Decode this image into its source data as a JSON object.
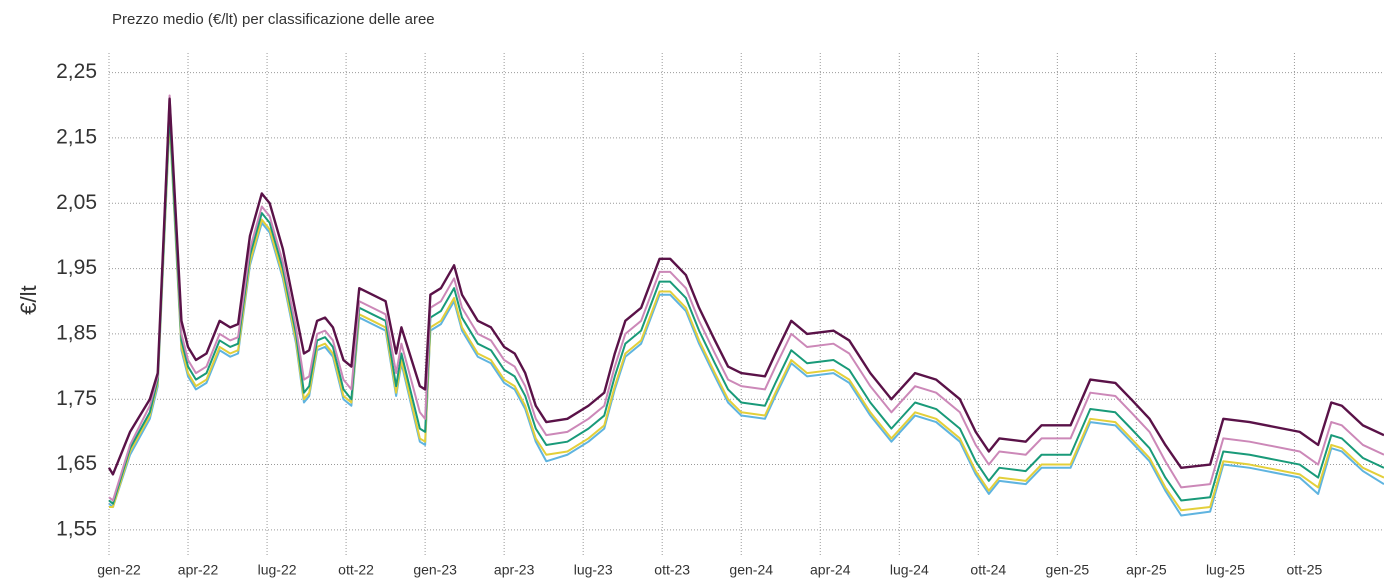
{
  "chart_data": {
    "type": "line",
    "title": "Prezzo medio (€/lt) per classificazione delle aree",
    "y_label": "€/lt",
    "x": [
      0,
      0.15,
      0.8,
      1.55,
      1.85,
      2.3,
      2.75,
      3.0,
      3.3,
      3.7,
      4.2,
      4.6,
      4.9,
      5.35,
      5.8,
      6.1,
      6.6,
      7.1,
      7.4,
      7.6,
      7.9,
      8.2,
      8.5,
      8.9,
      9.2,
      9.5,
      10,
      10.5,
      10.9,
      11.1,
      11.8,
      12.0,
      12.2,
      12.6,
      13.1,
      13.4,
      14,
      14.5,
      15,
      15.4,
      15.8,
      16.2,
      16.6,
      17.4,
      18.2,
      18.8,
      19.2,
      19.6,
      20.2,
      20.9,
      21.3,
      21.9,
      22.4,
      23,
      23.5,
      24,
      24.9,
      25.3,
      25.9,
      26.5,
      27.5,
      28.1,
      28.9,
      29.7,
      30.6,
      31.4,
      32.3,
      32.9,
      33.4,
      33.8,
      34.8,
      35.4,
      36.5,
      37.25,
      38.2,
      38.8,
      39.5,
      40.1,
      40.7,
      41.8,
      42.3,
      43.3,
      45.2,
      45.9,
      46.4,
      46.8,
      47.6,
      48.4
    ],
    "xlim": [
      0,
      48.4
    ],
    "xticks": [
      {
        "value": 0,
        "label": "gen-22"
      },
      {
        "value": 3,
        "label": "apr-22"
      },
      {
        "value": 6,
        "label": "lug-22"
      },
      {
        "value": 9,
        "label": "ott-22"
      },
      {
        "value": 12,
        "label": "gen-23"
      },
      {
        "value": 15,
        "label": "apr-23"
      },
      {
        "value": 18,
        "label": "lug-23"
      },
      {
        "value": 21,
        "label": "ott-23"
      },
      {
        "value": 24,
        "label": "gen-24"
      },
      {
        "value": 27,
        "label": "apr-24"
      },
      {
        "value": 30,
        "label": "lug-24"
      },
      {
        "value": 33,
        "label": "ott-24"
      },
      {
        "value": 36,
        "label": "gen-25"
      },
      {
        "value": 39,
        "label": "apr-25"
      },
      {
        "value": 42,
        "label": "lug-25"
      },
      {
        "value": 45,
        "label": "ott-25"
      }
    ],
    "ylim": [
      1.51,
      2.28
    ],
    "yticks": [
      {
        "value": 1.55,
        "label": "1,55"
      },
      {
        "value": 1.65,
        "label": "1,65"
      },
      {
        "value": 1.75,
        "label": "1,75"
      },
      {
        "value": 1.85,
        "label": "1,85"
      },
      {
        "value": 1.95,
        "label": "1,95"
      },
      {
        "value": 2.05,
        "label": "2,05"
      },
      {
        "value": 2.15,
        "label": "2,15"
      },
      {
        "value": 2.25,
        "label": "2,25"
      }
    ],
    "grid": true,
    "series": [
      {
        "color": "#5fb4e0",
        "values": [
          1.59,
          1.585,
          1.665,
          1.72,
          1.77,
          2.175,
          1.825,
          1.785,
          1.765,
          1.775,
          1.825,
          1.815,
          1.82,
          1.955,
          2.02,
          2.005,
          1.935,
          1.835,
          1.745,
          1.755,
          1.825,
          1.83,
          1.815,
          1.75,
          1.74,
          1.875,
          1.865,
          1.855,
          1.755,
          1.805,
          1.685,
          1.68,
          1.855,
          1.865,
          1.9,
          1.855,
          1.815,
          1.805,
          1.775,
          1.765,
          1.735,
          1.685,
          1.655,
          1.665,
          1.685,
          1.705,
          1.765,
          1.815,
          1.835,
          1.91,
          1.91,
          1.885,
          1.835,
          1.785,
          1.745,
          1.725,
          1.72,
          1.755,
          1.805,
          1.785,
          1.79,
          1.775,
          1.725,
          1.685,
          1.725,
          1.715,
          1.685,
          1.635,
          1.605,
          1.625,
          1.62,
          1.645,
          1.645,
          1.715,
          1.71,
          1.685,
          1.655,
          1.61,
          1.572,
          1.578,
          1.65,
          1.645,
          1.63,
          1.605,
          1.675,
          1.67,
          1.64,
          1.62
        ]
      },
      {
        "color": "#e3cf3a",
        "values": [
          1.585,
          1.585,
          1.67,
          1.725,
          1.775,
          2.18,
          1.83,
          1.79,
          1.77,
          1.78,
          1.83,
          1.82,
          1.825,
          1.96,
          2.025,
          2.01,
          1.94,
          1.84,
          1.75,
          1.76,
          1.83,
          1.835,
          1.82,
          1.755,
          1.745,
          1.88,
          1.87,
          1.86,
          1.76,
          1.81,
          1.69,
          1.685,
          1.86,
          1.87,
          1.905,
          1.86,
          1.82,
          1.81,
          1.78,
          1.77,
          1.74,
          1.69,
          1.665,
          1.67,
          1.69,
          1.71,
          1.77,
          1.82,
          1.84,
          1.915,
          1.915,
          1.89,
          1.84,
          1.79,
          1.75,
          1.73,
          1.725,
          1.76,
          1.81,
          1.79,
          1.795,
          1.78,
          1.73,
          1.69,
          1.73,
          1.72,
          1.69,
          1.64,
          1.61,
          1.63,
          1.625,
          1.65,
          1.65,
          1.72,
          1.715,
          1.69,
          1.66,
          1.615,
          1.58,
          1.585,
          1.655,
          1.65,
          1.635,
          1.615,
          1.68,
          1.675,
          1.645,
          1.63
        ]
      },
      {
        "color": "#199a79",
        "values": [
          1.595,
          1.59,
          1.675,
          1.73,
          1.78,
          2.19,
          1.84,
          1.8,
          1.78,
          1.79,
          1.84,
          1.83,
          1.835,
          1.97,
          2.035,
          2.02,
          1.95,
          1.85,
          1.76,
          1.77,
          1.84,
          1.845,
          1.83,
          1.765,
          1.75,
          1.89,
          1.88,
          1.87,
          1.77,
          1.82,
          1.705,
          1.7,
          1.875,
          1.885,
          1.92,
          1.875,
          1.835,
          1.825,
          1.795,
          1.785,
          1.755,
          1.705,
          1.68,
          1.685,
          1.705,
          1.725,
          1.785,
          1.835,
          1.855,
          1.93,
          1.93,
          1.905,
          1.855,
          1.805,
          1.765,
          1.745,
          1.74,
          1.775,
          1.825,
          1.805,
          1.81,
          1.795,
          1.745,
          1.705,
          1.745,
          1.735,
          1.705,
          1.655,
          1.625,
          1.645,
          1.64,
          1.665,
          1.665,
          1.735,
          1.73,
          1.705,
          1.675,
          1.63,
          1.595,
          1.6,
          1.67,
          1.665,
          1.65,
          1.63,
          1.695,
          1.69,
          1.66,
          1.645
        ]
      },
      {
        "color": "#cc88b8",
        "values": [
          1.6,
          1.595,
          1.68,
          1.74,
          1.785,
          2.215,
          1.85,
          1.81,
          1.79,
          1.8,
          1.85,
          1.84,
          1.845,
          1.98,
          2.045,
          2.03,
          1.96,
          1.86,
          1.78,
          1.785,
          1.85,
          1.855,
          1.84,
          1.78,
          1.765,
          1.9,
          1.89,
          1.88,
          1.79,
          1.835,
          1.73,
          1.72,
          1.89,
          1.9,
          1.935,
          1.89,
          1.85,
          1.84,
          1.81,
          1.8,
          1.77,
          1.72,
          1.695,
          1.7,
          1.72,
          1.74,
          1.8,
          1.85,
          1.87,
          1.945,
          1.945,
          1.92,
          1.87,
          1.82,
          1.78,
          1.77,
          1.765,
          1.8,
          1.85,
          1.83,
          1.835,
          1.82,
          1.77,
          1.73,
          1.77,
          1.76,
          1.73,
          1.68,
          1.65,
          1.67,
          1.665,
          1.69,
          1.69,
          1.76,
          1.755,
          1.73,
          1.7,
          1.655,
          1.615,
          1.62,
          1.69,
          1.685,
          1.67,
          1.65,
          1.715,
          1.71,
          1.68,
          1.665
        ]
      },
      {
        "color": "#5a1248",
        "values": [
          1.645,
          1.635,
          1.7,
          1.75,
          1.79,
          2.21,
          1.87,
          1.83,
          1.81,
          1.82,
          1.87,
          1.86,
          1.865,
          2.0,
          2.065,
          2.05,
          1.98,
          1.88,
          1.82,
          1.825,
          1.87,
          1.875,
          1.86,
          1.81,
          1.8,
          1.92,
          1.91,
          1.9,
          1.82,
          1.86,
          1.77,
          1.765,
          1.91,
          1.92,
          1.955,
          1.91,
          1.87,
          1.86,
          1.83,
          1.82,
          1.79,
          1.74,
          1.715,
          1.72,
          1.74,
          1.76,
          1.82,
          1.87,
          1.89,
          1.965,
          1.965,
          1.94,
          1.89,
          1.84,
          1.8,
          1.79,
          1.785,
          1.82,
          1.87,
          1.85,
          1.855,
          1.84,
          1.79,
          1.75,
          1.79,
          1.78,
          1.75,
          1.7,
          1.67,
          1.69,
          1.685,
          1.71,
          1.71,
          1.78,
          1.775,
          1.75,
          1.72,
          1.68,
          1.645,
          1.65,
          1.72,
          1.715,
          1.7,
          1.68,
          1.745,
          1.74,
          1.71,
          1.695
        ]
      }
    ]
  }
}
